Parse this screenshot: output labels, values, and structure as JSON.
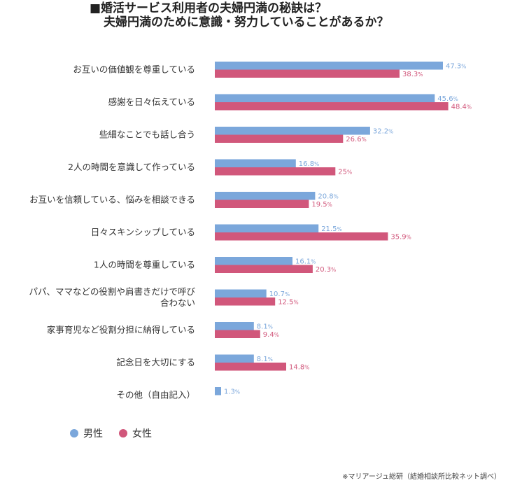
{
  "title": {
    "line1": "■婚活サービス利用者の夫婦円満の秘訣は？",
    "line2": "夫婦円満のために意識・努力していることがあるか？"
  },
  "colors": {
    "male": "#7ba7db",
    "female": "#d1577b"
  },
  "chart_data": {
    "type": "bar",
    "orientation": "horizontal",
    "unit": "%",
    "categories": [
      [
        "お互いの価値観を尊重している"
      ],
      [
        "感謝を日々伝えている"
      ],
      [
        "些細なことでも話し合う"
      ],
      [
        "2人の時間を意識して作っている"
      ],
      [
        "お互いを信頼している、悩みを相談できる"
      ],
      [
        "日々スキンシップしている"
      ],
      [
        "1人の時間を尊重している"
      ],
      [
        "パパ、ママなどの役割や肩書きだけで呼び",
        "合わない"
      ],
      [
        "家事育児など役割分担に納得している"
      ],
      [
        "記念日を大切にする"
      ],
      [
        "その他（自由記入）"
      ]
    ],
    "series": [
      {
        "name": "男性",
        "values": [
          47.3,
          45.6,
          32.2,
          16.8,
          20.8,
          21.5,
          16.1,
          10.7,
          8.1,
          8.1,
          1.3
        ]
      },
      {
        "name": "女性",
        "values": [
          38.3,
          48.4,
          26.6,
          25,
          19.5,
          35.9,
          20.3,
          12.5,
          9.4,
          14.8,
          null
        ]
      }
    ],
    "xlim": [
      0,
      60
    ],
    "grid": false,
    "legend": "bottom-left"
  },
  "legend": {
    "male": "男性",
    "female": "女性"
  },
  "footnote": "※マリアージュ総研（結婚相談所比較ネット調べ）"
}
